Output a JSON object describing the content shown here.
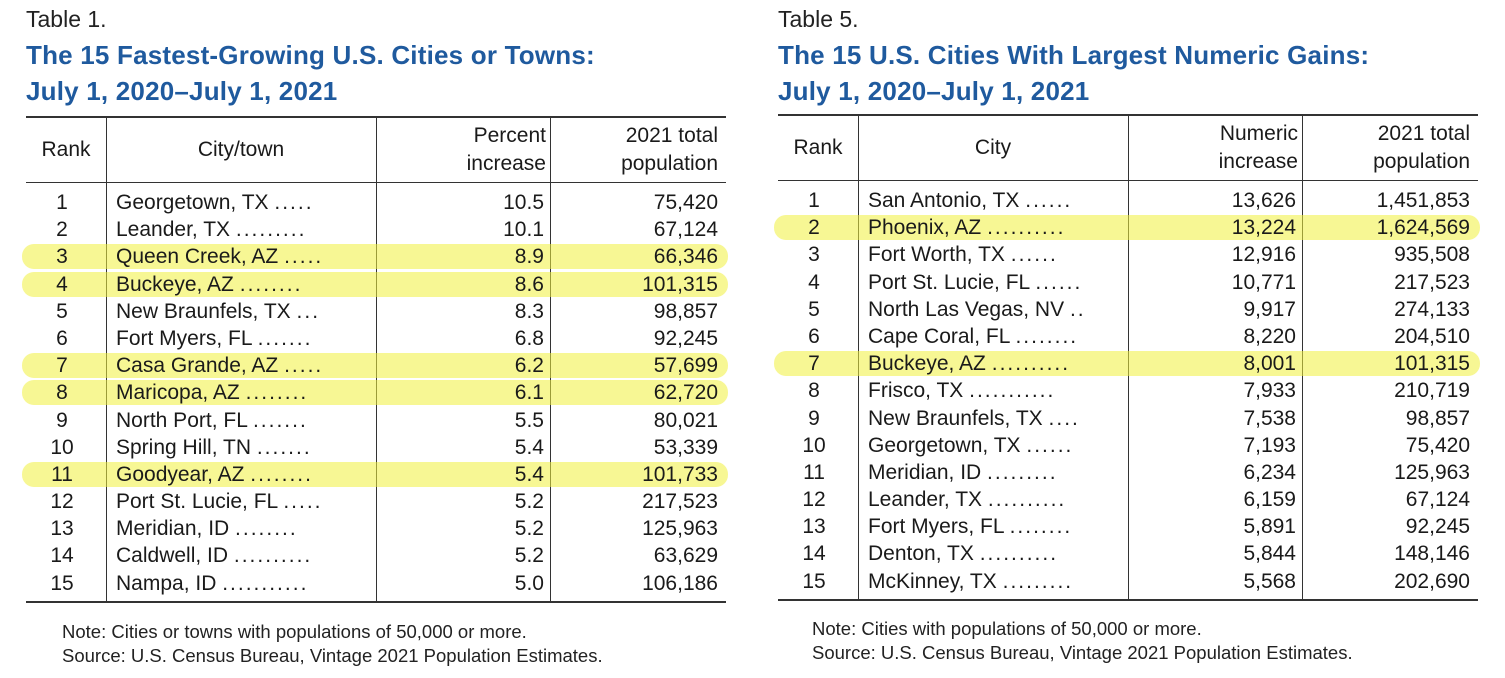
{
  "tables": [
    {
      "label": "Table 1.",
      "title_line1": "The 15 Fastest-Growing U.S. Cities or Towns:",
      "title_line2": "July 1, 2020–July 1, 2021",
      "headers": {
        "rank": "Rank",
        "city": "City/town",
        "v1_line1": "Percent",
        "v1_line2": "increase",
        "v2_line1": "2021 total",
        "v2_line2": "population"
      },
      "rows": [
        {
          "rank": "1",
          "city": "Georgetown, TX",
          "dots": ".....",
          "v1": "10.5",
          "v2": "75,420",
          "highlighted": false
        },
        {
          "rank": "2",
          "city": "Leander, TX",
          "dots": ".........",
          "v1": "10.1",
          "v2": "67,124",
          "highlighted": false
        },
        {
          "rank": "3",
          "city": "Queen Creek, AZ",
          "dots": ".....",
          "v1": "8.9",
          "v2": "66,346",
          "highlighted": true
        },
        {
          "rank": "4",
          "city": "Buckeye, AZ",
          "dots": "........",
          "v1": "8.6",
          "v2": "101,315",
          "highlighted": true
        },
        {
          "rank": "5",
          "city": "New Braunfels, TX",
          "dots": "...",
          "v1": "8.3",
          "v2": "98,857",
          "highlighted": false
        },
        {
          "rank": "6",
          "city": "Fort Myers, FL",
          "dots": ".......",
          "v1": "6.8",
          "v2": "92,245",
          "highlighted": false
        },
        {
          "rank": "7",
          "city": "Casa Grande, AZ",
          "dots": ".....",
          "v1": "6.2",
          "v2": "57,699",
          "highlighted": true
        },
        {
          "rank": "8",
          "city": "Maricopa, AZ",
          "dots": "........",
          "v1": "6.1",
          "v2": "62,720",
          "highlighted": true
        },
        {
          "rank": "9",
          "city": "North Port, FL",
          "dots": ".......",
          "v1": "5.5",
          "v2": "80,021",
          "highlighted": false
        },
        {
          "rank": "10",
          "city": "Spring Hill, TN",
          "dots": ".......",
          "v1": "5.4",
          "v2": "53,339",
          "highlighted": false
        },
        {
          "rank": "11",
          "city": "Goodyear, AZ",
          "dots": "........",
          "v1": "5.4",
          "v2": "101,733",
          "highlighted": true
        },
        {
          "rank": "12",
          "city": "Port St. Lucie, FL",
          "dots": ".....",
          "v1": "5.2",
          "v2": "217,523",
          "highlighted": false
        },
        {
          "rank": "13",
          "city": "Meridian, ID",
          "dots": "........",
          "v1": "5.2",
          "v2": "125,963",
          "highlighted": false
        },
        {
          "rank": "14",
          "city": "Caldwell, ID",
          "dots": "..........",
          "v1": "5.2",
          "v2": "63,629",
          "highlighted": false
        },
        {
          "rank": "15",
          "city": "Nampa, ID",
          "dots": "...........",
          "v1": "5.0",
          "v2": "106,186",
          "highlighted": false
        }
      ],
      "note": "Note: Cities or towns with populations of 50,000 or more.",
      "source": "Source: U.S. Census Bureau, Vintage 2021 Population Estimates."
    },
    {
      "label": "Table 5.",
      "title_line1": "The 15 U.S. Cities With Largest Numeric Gains:",
      "title_line2": "July 1, 2020–July 1, 2021",
      "headers": {
        "rank": "Rank",
        "city": "City",
        "v1_line1": "Numeric",
        "v1_line2": "increase",
        "v2_line1": "2021 total",
        "v2_line2": "population"
      },
      "rows": [
        {
          "rank": "1",
          "city": "San Antonio, TX",
          "dots": "......",
          "v1": "13,626",
          "v2": "1,451,853",
          "highlighted": false
        },
        {
          "rank": "2",
          "city": "Phoenix, AZ",
          "dots": "..........",
          "v1": "13,224",
          "v2": "1,624,569",
          "highlighted": true
        },
        {
          "rank": "3",
          "city": "Fort Worth, TX",
          "dots": "......",
          "v1": "12,916",
          "v2": "935,508",
          "highlighted": false
        },
        {
          "rank": "4",
          "city": "Port St. Lucie, FL",
          "dots": "......",
          "v1": "10,771",
          "v2": "217,523",
          "highlighted": false
        },
        {
          "rank": "5",
          "city": "North Las Vegas, NV",
          "dots": "..",
          "v1": "9,917",
          "v2": "274,133",
          "highlighted": false
        },
        {
          "rank": "6",
          "city": "Cape Coral, FL",
          "dots": "........",
          "v1": "8,220",
          "v2": "204,510",
          "highlighted": false
        },
        {
          "rank": "7",
          "city": "Buckeye, AZ",
          "dots": "..........",
          "v1": "8,001",
          "v2": "101,315",
          "highlighted": true
        },
        {
          "rank": "8",
          "city": "Frisco, TX",
          "dots": "...........",
          "v1": "7,933",
          "v2": "210,719",
          "highlighted": false
        },
        {
          "rank": "9",
          "city": "New Braunfels, TX",
          "dots": "....",
          "v1": "7,538",
          "v2": "98,857",
          "highlighted": false
        },
        {
          "rank": "10",
          "city": "Georgetown, TX",
          "dots": "......",
          "v1": "7,193",
          "v2": "75,420",
          "highlighted": false
        },
        {
          "rank": "11",
          "city": "Meridian, ID",
          "dots": ".........",
          "v1": "6,234",
          "v2": "125,963",
          "highlighted": false
        },
        {
          "rank": "12",
          "city": "Leander, TX",
          "dots": "..........",
          "v1": "6,159",
          "v2": "67,124",
          "highlighted": false
        },
        {
          "rank": "13",
          "city": "Fort Myers, FL",
          "dots": "........",
          "v1": "5,891",
          "v2": "92,245",
          "highlighted": false
        },
        {
          "rank": "14",
          "city": "Denton, TX",
          "dots": "..........",
          "v1": "5,844",
          "v2": "148,146",
          "highlighted": false
        },
        {
          "rank": "15",
          "city": "McKinney, TX",
          "dots": ".........",
          "v1": "5,568",
          "v2": "202,690",
          "highlighted": false
        }
      ],
      "note": "Note: Cities with populations of 50,000 or more.",
      "source": "Source: U.S. Census Bureau, Vintage 2021 Population Estimates."
    }
  ],
  "colors": {
    "title": "#1f5a9e",
    "highlight": "#f0f03c"
  }
}
